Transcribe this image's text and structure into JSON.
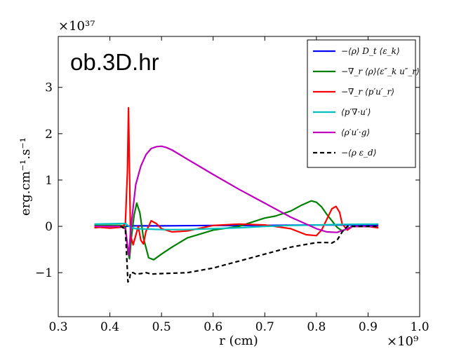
{
  "chart_data": {
    "type": "line",
    "panel_title": "ob.3D.hr",
    "xlabel": "r (cm)",
    "ylabel": "erg.cm⁻¹.s⁻¹",
    "x_multiplier": "×10⁹",
    "y_multiplier": "×10³⁷",
    "xlim": [
      0.3,
      1.0
    ],
    "ylim": [
      -1.95,
      4.1
    ],
    "xticks": [
      "0.3",
      "0.4",
      "0.5",
      "0.6",
      "0.7",
      "0.8",
      "0.9",
      "1.0"
    ],
    "yticks": [
      "−1",
      "0",
      "1",
      "2",
      "3"
    ],
    "legend_position": "top-right",
    "series": [
      {
        "name": "−⟨ρ⟩ D_t ⟨ε_k⟩",
        "color": "#0000ff",
        "dash": "solid",
        "x": [
          0.37,
          0.43,
          0.44,
          0.5,
          0.6,
          0.7,
          0.8,
          0.92
        ],
        "y": [
          0.0,
          0.0,
          0.01,
          0.01,
          0.02,
          0.02,
          0.03,
          0.03
        ]
      },
      {
        "name": "−∇_r ⟨ρ⟩⟨ε″_k u″_r⟩",
        "color": "#008000",
        "dash": "solid",
        "x": [
          0.37,
          0.42,
          0.43,
          0.435,
          0.438,
          0.442,
          0.447,
          0.452,
          0.458,
          0.465,
          0.475,
          0.485,
          0.5,
          0.52,
          0.55,
          0.6,
          0.65,
          0.7,
          0.72,
          0.75,
          0.77,
          0.79,
          0.8,
          0.81,
          0.82,
          0.83,
          0.84,
          0.85,
          0.86,
          0.87,
          0.9,
          0.92
        ],
        "y": [
          0.02,
          0.02,
          0.0,
          -0.55,
          -0.7,
          -0.2,
          0.25,
          0.5,
          0.3,
          -0.25,
          -0.68,
          -0.72,
          -0.6,
          -0.45,
          -0.25,
          -0.08,
          0.0,
          0.18,
          0.22,
          0.33,
          0.45,
          0.55,
          0.52,
          0.42,
          0.26,
          0.12,
          -0.02,
          -0.1,
          -0.05,
          0.0,
          0.0,
          0.0
        ]
      },
      {
        "name": "−∇_r ⟨p′u′_r⟩",
        "color": "#ff0000",
        "dash": "solid",
        "x": [
          0.37,
          0.38,
          0.4,
          0.42,
          0.43,
          0.434,
          0.436,
          0.438,
          0.44,
          0.445,
          0.45,
          0.455,
          0.46,
          0.465,
          0.47,
          0.475,
          0.48,
          0.49,
          0.5,
          0.52,
          0.55,
          0.6,
          0.65,
          0.7,
          0.75,
          0.78,
          0.8,
          0.81,
          0.82,
          0.83,
          0.838,
          0.845,
          0.85,
          0.86,
          0.87,
          0.9,
          0.92
        ],
        "y": [
          -0.03,
          -0.02,
          -0.04,
          -0.02,
          0.05,
          1.2,
          2.56,
          1.2,
          -0.2,
          -0.4,
          -0.2,
          0.0,
          -0.3,
          -0.38,
          -0.1,
          0.0,
          0.12,
          0.06,
          -0.05,
          -0.12,
          -0.1,
          0.02,
          0.05,
          0.03,
          -0.05,
          -0.18,
          -0.2,
          -0.08,
          0.15,
          0.38,
          0.43,
          0.3,
          0.05,
          -0.08,
          0.0,
          0.0,
          -0.03
        ]
      },
      {
        "name": "⟨p′∇·u′⟩",
        "color": "#00bfbf",
        "dash": "solid",
        "x": [
          0.37,
          0.42,
          0.43,
          0.44,
          0.45,
          0.5,
          0.55,
          0.6,
          0.65,
          0.7,
          0.75,
          0.8,
          0.85,
          0.92
        ],
        "y": [
          0.05,
          0.06,
          0.06,
          -0.02,
          -0.05,
          -0.07,
          -0.07,
          -0.05,
          -0.03,
          0.0,
          0.02,
          0.03,
          0.04,
          0.05
        ]
      },
      {
        "name": "⟨ρ′u′·g⟩",
        "color": "#bf00bf",
        "dash": "solid",
        "x": [
          0.37,
          0.42,
          0.43,
          0.434,
          0.437,
          0.44,
          0.445,
          0.45,
          0.46,
          0.47,
          0.48,
          0.49,
          0.5,
          0.51,
          0.52,
          0.55,
          0.6,
          0.65,
          0.7,
          0.75,
          0.8,
          0.82,
          0.84,
          0.86,
          0.87,
          0.9,
          0.92
        ],
        "y": [
          0.0,
          0.0,
          -0.05,
          -0.4,
          -0.63,
          -0.1,
          0.4,
          0.9,
          1.3,
          1.55,
          1.68,
          1.72,
          1.73,
          1.7,
          1.65,
          1.45,
          1.12,
          0.8,
          0.5,
          0.2,
          -0.05,
          -0.12,
          -0.13,
          -0.05,
          0.0,
          0.0,
          0.0
        ]
      },
      {
        "name": "−⟨ρ ε_d⟩",
        "color": "#000000",
        "dash": "dashed",
        "x": [
          0.42,
          0.43,
          0.435,
          0.438,
          0.44,
          0.445,
          0.45,
          0.46,
          0.47,
          0.48,
          0.5,
          0.55,
          0.6,
          0.65,
          0.7,
          0.75,
          0.8,
          0.82,
          0.83,
          0.84,
          0.85,
          0.86,
          0.87,
          0.9,
          0.92
        ],
        "y": [
          0.0,
          -0.05,
          -1.2,
          -1.15,
          -1.0,
          -1.0,
          -1.03,
          -1.02,
          -1.0,
          -1.03,
          -1.02,
          -1.0,
          -0.9,
          -0.75,
          -0.6,
          -0.45,
          -0.35,
          -0.35,
          -0.36,
          -0.3,
          -0.12,
          0.0,
          0.0,
          0.0,
          0.0
        ]
      }
    ]
  }
}
